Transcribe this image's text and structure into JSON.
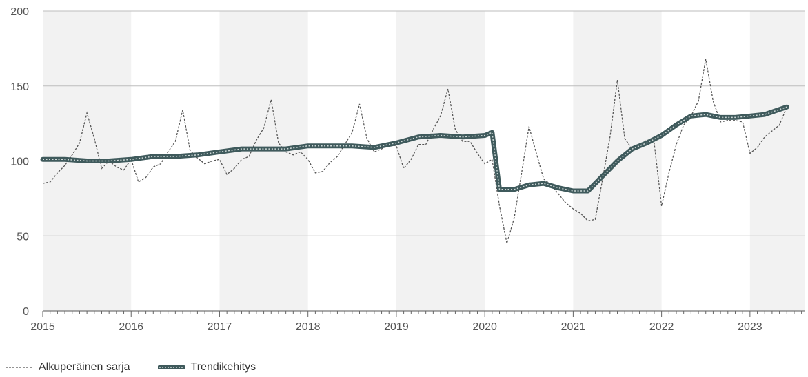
{
  "chart_data": {
    "type": "line",
    "x_ticks": [
      "2015",
      "2016",
      "2017",
      "2018",
      "2019",
      "2020",
      "2021",
      "2022",
      "2023"
    ],
    "y_ticks": [
      0,
      50,
      100,
      150,
      200
    ],
    "ylim": [
      0,
      200
    ],
    "x_range": [
      "2015-01",
      "2023-06"
    ],
    "grid": true,
    "legend_position": "bottom-left",
    "series": [
      {
        "name": "Alkuperäinen sarja",
        "style": "dashed",
        "color": "#555555",
        "x": [
          "2015-01",
          "2015-02",
          "2015-03",
          "2015-04",
          "2015-05",
          "2015-06",
          "2015-07",
          "2015-08",
          "2015-09",
          "2015-10",
          "2015-11",
          "2015-12",
          "2016-01",
          "2016-02",
          "2016-03",
          "2016-04",
          "2016-05",
          "2016-06",
          "2016-07",
          "2016-08",
          "2016-09",
          "2016-10",
          "2016-11",
          "2016-12",
          "2017-01",
          "2017-02",
          "2017-03",
          "2017-04",
          "2017-05",
          "2017-06",
          "2017-07",
          "2017-08",
          "2017-09",
          "2017-10",
          "2017-11",
          "2017-12",
          "2018-01",
          "2018-02",
          "2018-03",
          "2018-04",
          "2018-05",
          "2018-06",
          "2018-07",
          "2018-08",
          "2018-09",
          "2018-10",
          "2018-11",
          "2018-12",
          "2019-01",
          "2019-02",
          "2019-03",
          "2019-04",
          "2019-05",
          "2019-06",
          "2019-07",
          "2019-08",
          "2019-09",
          "2019-10",
          "2019-11",
          "2019-12",
          "2020-01",
          "2020-02",
          "2020-03",
          "2020-04",
          "2020-05",
          "2020-06",
          "2020-07",
          "2020-08",
          "2020-09",
          "2020-10",
          "2020-11",
          "2020-12",
          "2021-01",
          "2021-02",
          "2021-03",
          "2021-04",
          "2021-05",
          "2021-06",
          "2021-07",
          "2021-08",
          "2021-09",
          "2021-10",
          "2021-11",
          "2021-12",
          "2022-01",
          "2022-02",
          "2022-03",
          "2022-04",
          "2022-05",
          "2022-06",
          "2022-07",
          "2022-08",
          "2022-09",
          "2022-10",
          "2022-11",
          "2022-12",
          "2023-01",
          "2023-02",
          "2023-03",
          "2023-04",
          "2023-05",
          "2023-06"
        ],
        "values": [
          85,
          86,
          92,
          97,
          104,
          112,
          132,
          115,
          95,
          100,
          96,
          94,
          101,
          86,
          89,
          96,
          98,
          106,
          113,
          134,
          107,
          102,
          98,
          100,
          101,
          91,
          95,
          101,
          103,
          114,
          122,
          141,
          112,
          106,
          104,
          106,
          101,
          92,
          93,
          99,
          103,
          111,
          119,
          138,
          115,
          106,
          108,
          111,
          110,
          95,
          101,
          111,
          111,
          121,
          130,
          148,
          121,
          113,
          113,
          105,
          98,
          101,
          70,
          45,
          62,
          92,
          123,
          105,
          88,
          84,
          78,
          72,
          68,
          65,
          60,
          61,
          88,
          116,
          154,
          115,
          108,
          110,
          114,
          112,
          70,
          92,
          111,
          124,
          130,
          140,
          168,
          140,
          126,
          127,
          127,
          126,
          105,
          109,
          116,
          120,
          124,
          136
        ]
      },
      {
        "name": "Trendikehitys",
        "style": "thick",
        "color": "#3f5a5c",
        "x": [
          "2015-01",
          "2015-04",
          "2015-07",
          "2015-10",
          "2016-01",
          "2016-04",
          "2016-07",
          "2016-10",
          "2017-01",
          "2017-04",
          "2017-07",
          "2017-10",
          "2018-01",
          "2018-04",
          "2018-07",
          "2018-10",
          "2019-01",
          "2019-04",
          "2019-07",
          "2019-10",
          "2020-01",
          "2020-02",
          "2020-03",
          "2020-05",
          "2020-07",
          "2020-09",
          "2020-11",
          "2021-01",
          "2021-03",
          "2021-05",
          "2021-07",
          "2021-09",
          "2021-11",
          "2022-01",
          "2022-03",
          "2022-05",
          "2022-07",
          "2022-09",
          "2022-11",
          "2023-01",
          "2023-03",
          "2023-06"
        ],
        "values": [
          101,
          101,
          100,
          100,
          101,
          103,
          103,
          104,
          106,
          108,
          108,
          108,
          110,
          110,
          110,
          109,
          112,
          116,
          117,
          116,
          117,
          119,
          81,
          81,
          84,
          85,
          82,
          80,
          80,
          90,
          100,
          108,
          112,
          117,
          124,
          130,
          131,
          129,
          129,
          130,
          131,
          136
        ]
      }
    ]
  }
}
